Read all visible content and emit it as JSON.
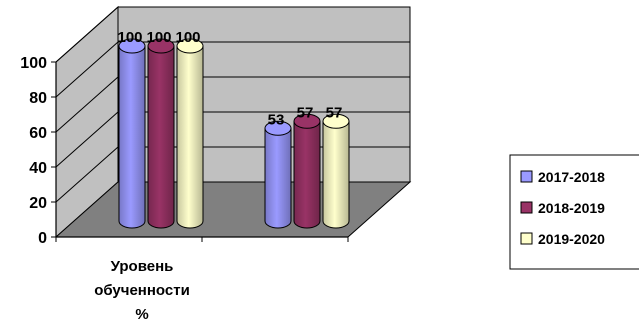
{
  "chart_data": {
    "type": "bar",
    "style": "3d-cylinder",
    "categories": [
      "Уровень обученности %",
      ""
    ],
    "category_label_lines": [
      "Уровень",
      "обученности",
      "%"
    ],
    "series": [
      {
        "name": "2017-2018",
        "values": [
          100,
          53
        ],
        "color": "#9a9aff"
      },
      {
        "name": "2018-2019",
        "values": [
          100,
          57
        ],
        "color": "#993366"
      },
      {
        "name": "2019-2020",
        "values": [
          100,
          57
        ],
        "color": "#ffffcc"
      }
    ],
    "ylim": [
      0,
      100
    ],
    "yticks": [
      0,
      20,
      40,
      60,
      80,
      100
    ],
    "grid": true,
    "legend": "right",
    "colors": {
      "wall": "#c0c0c0",
      "floor": "#808080",
      "grid": "#000000"
    }
  }
}
